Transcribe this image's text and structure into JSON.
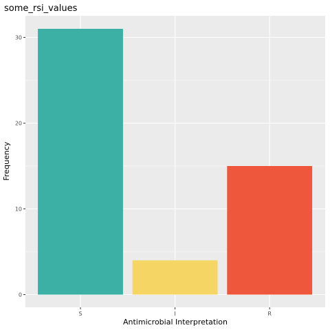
{
  "chart_data": {
    "type": "bar",
    "title": "some_rsi_values",
    "xlabel": "Antimicrobial Interpretation",
    "ylabel": "Frequency",
    "categories": [
      "S",
      "I",
      "R"
    ],
    "values": [
      31,
      4,
      15
    ],
    "bar_colors": [
      "#3CB0A5",
      "#F5D563",
      "#EE573B"
    ],
    "ylim": [
      0,
      32.5
    ],
    "yticks": [
      0,
      10,
      20,
      30
    ],
    "grid": true,
    "panel_background": "#EBEBEB",
    "grid_color": "#FFFFFF"
  }
}
